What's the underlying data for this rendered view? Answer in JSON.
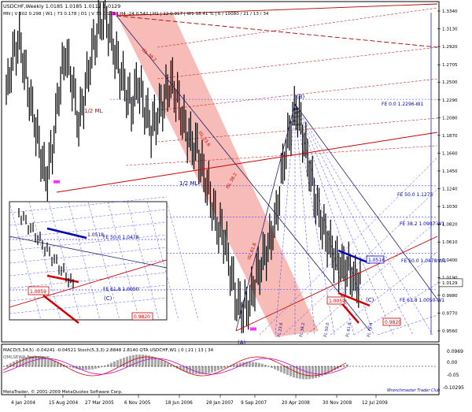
{
  "header": {
    "symbol_line": "USDCHF,Weekly  1.0185 1.0185 1.0112 1.0129",
    "tf_line": "MN | V 302  0.298 | W1 | 73  0.178 | D1 | V 73  0.178 | H4  -24  0.542 | H1 | 12  0.917 | W1 18.41 %  | 6 / 10080 / 21 / 13 / 34"
  },
  "footer": {
    "copyright": "MetaTrader, © 2001-2009 MetaQuotes Software Corp.",
    "signature": "Wrenchmaster Trader Club"
  },
  "indicator": {
    "title": "MACD(5,34,5) -0.04241 -0.04521  Stoch(5,3,3) 2.8848 2.8140  QTA USDCHF,W1 | 0 | 21 | 13 | 34",
    "subtitle": "QMLSEWA Fechnique",
    "ticks": [
      "0.0969",
      "0.00",
      "-0.05",
      "-0.10295"
    ]
  },
  "chart_data": {
    "type": "line",
    "title": "USDCHF,Weekly",
    "x_labels": [
      "4 Jan 2004",
      "15 Aug 2004",
      "27 Mar 2005",
      "6 Nov 2005",
      "18 Jun 2006",
      "28 Jan 2007",
      "9 Sep 2007",
      "20 Apr 2008",
      "30 Nov 2008",
      "12 Jul 2009"
    ],
    "y_ticks": [
      "1.3340",
      "1.3130",
      "1.2920",
      "1.2705",
      "1.2500",
      "1.2290",
      "1.2080",
      "1.1870",
      "1.1660",
      "1.1450",
      "1.1240",
      "1.1030",
      "1.0820",
      "1.0610",
      "1.0400",
      "1.0190",
      "1.0129",
      "0.9980",
      "0.9770",
      "0.9560"
    ],
    "ylim": [
      0.956,
      1.334
    ],
    "series": [
      {
        "values": [
          1.235,
          1.28,
          1.3,
          1.255,
          1.215,
          1.175,
          1.135,
          1.17,
          1.24,
          1.285,
          1.25,
          1.2,
          1.24,
          1.285,
          1.315,
          1.33,
          1.3,
          1.27,
          1.245,
          1.22,
          1.25,
          1.22,
          1.195,
          1.21,
          1.23,
          1.25,
          1.23,
          1.2,
          1.18,
          1.17,
          1.14,
          1.115,
          1.08,
          1.07,
          1.03,
          0.99,
          0.98,
          0.99,
          1.02,
          1.04,
          1.06,
          1.09,
          1.15,
          1.19,
          1.22,
          1.19,
          1.15,
          1.11,
          1.08,
          1.06,
          1.04,
          1.03,
          1.03,
          1.015,
          1.013
        ]
      }
    ],
    "annotations": {
      "fe_labels": [
        "FE 0.0 1.2296-W1",
        "FE 50.0 1.1275",
        "FE 38.2 1.0907-W1",
        "FE 50.0 1.0478-W1",
        "FE 61.8 1.0050-W1"
      ],
      "wave_labels": [
        "(A)",
        "(B)",
        "(C)"
      ],
      "ml_labels": [
        "1/2 ML",
        "1/2 ML"
      ],
      "boxes": [
        "1.0518",
        "1.0059",
        "0.9820"
      ],
      "isl_labels": [
        "ISL 38.2",
        "ISL 23.6",
        "ISL 38.2",
        "ISL 61.8"
      ],
      "bottom_labels": [
        "FL 23.6",
        "FL 38.2",
        "FL 50.0",
        "FL 61.8",
        "FL 76.4"
      ]
    }
  },
  "inset": {
    "labels": [
      "1.0518",
      "FE 50.0 1.0478",
      "1.0059",
      "FE 61.8 1.0050",
      "0.9820",
      "(C)"
    ]
  },
  "colors": {
    "up_bar": "#000000",
    "red_line": "#cc0000",
    "blue_line": "#0000cc",
    "fan_fill": "#f4a6a0",
    "grid_dotted": "#6a6aff"
  }
}
